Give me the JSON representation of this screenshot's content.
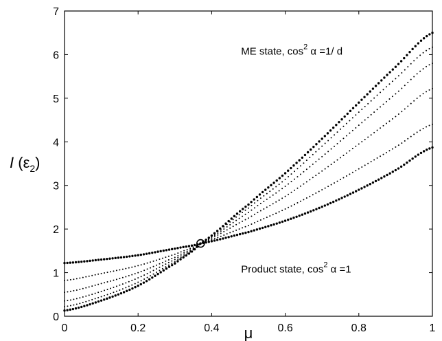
{
  "chart_data": {
    "type": "scatter",
    "x_range": [
      0,
      1
    ],
    "y_range": [
      0,
      7
    ],
    "xticks": [
      "0",
      "0.2",
      "0.4",
      "0.6",
      "0.8",
      "1"
    ],
    "yticks": [
      "0",
      "1",
      "2",
      "3",
      "4",
      "5",
      "6",
      "7"
    ],
    "xlabel": "μ",
    "ylabel": {
      "main": "I (ε",
      "sub": "2",
      "close": ")"
    },
    "grid": false,
    "annotations": [
      {
        "text": "ME state, cos",
        "sup": "2",
        "rest": " α =1/ d",
        "x": 0.48,
        "y": 6.0
      },
      {
        "text": "Product state, cos",
        "sup": "2",
        "rest": " α =1",
        "x": 0.48,
        "y": 1.0
      }
    ],
    "marker": {
      "label": "crossing point",
      "x": 0.37,
      "y": 1.67
    },
    "series": [
      {
        "style": "bold-dotted",
        "x": [
          0,
          0.1,
          0.2,
          0.3,
          0.37,
          0.5,
          0.6,
          0.7,
          0.8,
          0.9,
          1.0
        ],
        "y": [
          1.22,
          1.3,
          1.4,
          1.55,
          1.67,
          1.93,
          2.19,
          2.51,
          2.9,
          3.35,
          3.87
        ]
      },
      {
        "style": "dotted",
        "x": [
          0,
          0.1,
          0.2,
          0.3,
          0.37,
          0.5,
          0.6,
          0.7,
          0.8,
          0.9,
          1.0
        ],
        "y": [
          0.82,
          0.98,
          1.16,
          1.42,
          1.67,
          2.08,
          2.46,
          2.9,
          3.38,
          3.88,
          4.4
        ]
      },
      {
        "style": "dotted",
        "x": [
          0,
          0.1,
          0.2,
          0.3,
          0.37,
          0.5,
          0.6,
          0.7,
          0.8,
          0.9,
          1.0
        ],
        "y": [
          0.55,
          0.75,
          1.0,
          1.35,
          1.67,
          2.25,
          2.75,
          3.33,
          3.95,
          4.58,
          5.22
        ]
      },
      {
        "style": "dotted",
        "x": [
          0,
          0.1,
          0.2,
          0.3,
          0.37,
          0.5,
          0.6,
          0.7,
          0.8,
          0.9,
          1.0
        ],
        "y": [
          0.35,
          0.57,
          0.88,
          1.3,
          1.67,
          2.38,
          2.98,
          3.66,
          4.38,
          5.1,
          5.8
        ]
      },
      {
        "style": "dotted",
        "x": [
          0,
          0.1,
          0.2,
          0.3,
          0.37,
          0.5,
          0.6,
          0.7,
          0.8,
          0.9,
          1.0
        ],
        "y": [
          0.22,
          0.45,
          0.78,
          1.25,
          1.67,
          2.48,
          3.14,
          3.9,
          4.68,
          5.45,
          6.17
        ]
      },
      {
        "style": "bold-dotted",
        "x": [
          0,
          0.1,
          0.2,
          0.3,
          0.37,
          0.5,
          0.6,
          0.7,
          0.8,
          0.9,
          1.0
        ],
        "y": [
          0.13,
          0.36,
          0.7,
          1.21,
          1.67,
          2.56,
          3.28,
          4.07,
          4.9,
          5.72,
          6.5
        ]
      }
    ]
  }
}
